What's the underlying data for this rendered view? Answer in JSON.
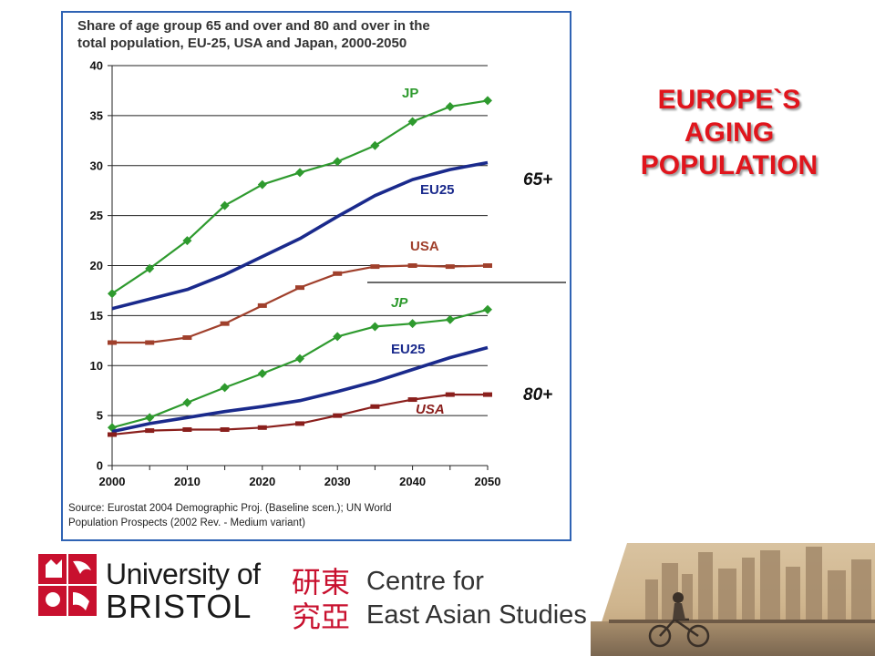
{
  "slide": {
    "title_lines": [
      "EUROPE`S",
      "AGING",
      "POPULATION"
    ]
  },
  "chart": {
    "title_lines": [
      "Share of age group 65 and over and 80 and over in the",
      "total population, EU-25, USA and Japan, 2000-2050"
    ],
    "source_lines": [
      "Source: Eurostat 2004 Demographic Proj. (Baseline scen.); UN World",
      "Population Prospects (2002 Rev. - Medium variant)"
    ],
    "group_labels": [
      "65+",
      "80+"
    ]
  },
  "chart_data": {
    "type": "line",
    "x_ticks": [
      2000,
      2010,
      2020,
      2030,
      2040,
      2050
    ],
    "y_ticks": [
      0,
      5,
      10,
      15,
      20,
      25,
      30,
      35,
      40
    ],
    "xlim": [
      2000,
      2050
    ],
    "ylim": [
      0,
      40
    ],
    "grid": "horizontal",
    "series": [
      {
        "name": "JP",
        "group": "65+",
        "color": "#2e9a2e",
        "marker": "diamond",
        "x": [
          2000,
          2005,
          2010,
          2015,
          2020,
          2025,
          2030,
          2035,
          2040,
          2045,
          2050
        ],
        "y": [
          17.2,
          19.7,
          22.5,
          26.0,
          28.1,
          29.3,
          30.4,
          32.0,
          34.4,
          35.9,
          36.5
        ]
      },
      {
        "name": "EU25",
        "group": "65+",
        "color": "#1a2a8c",
        "marker": "none",
        "x": [
          2000,
          2010,
          2015,
          2020,
          2025,
          2030,
          2035,
          2040,
          2045,
          2050
        ],
        "y": [
          15.7,
          17.6,
          19.1,
          20.9,
          22.7,
          24.9,
          27.0,
          28.6,
          29.6,
          30.3
        ]
      },
      {
        "name": "USA",
        "group": "65+",
        "color": "#a0402c",
        "marker": "square",
        "x": [
          2000,
          2005,
          2010,
          2015,
          2020,
          2025,
          2030,
          2035,
          2040,
          2045,
          2050
        ],
        "y": [
          12.3,
          12.3,
          12.8,
          14.2,
          16.0,
          17.8,
          19.2,
          19.9,
          20.0,
          19.9,
          20.0
        ]
      },
      {
        "name": "JP",
        "group": "80+",
        "color": "#2e9a2e",
        "marker": "diamond",
        "x": [
          2000,
          2005,
          2010,
          2015,
          2020,
          2025,
          2030,
          2035,
          2040,
          2045,
          2050
        ],
        "y": [
          3.8,
          4.8,
          6.3,
          7.8,
          9.2,
          10.7,
          12.9,
          13.9,
          14.2,
          14.6,
          15.6
        ]
      },
      {
        "name": "EU25",
        "group": "80+",
        "color": "#1a2a8c",
        "marker": "none",
        "x": [
          2000,
          2005,
          2010,
          2015,
          2020,
          2025,
          2030,
          2035,
          2040,
          2045,
          2050
        ],
        "y": [
          3.4,
          4.2,
          4.8,
          5.4,
          5.9,
          6.5,
          7.4,
          8.4,
          9.6,
          10.8,
          11.8
        ]
      },
      {
        "name": "USA",
        "group": "80+",
        "color": "#8a1f1c",
        "marker": "square",
        "x": [
          2000,
          2005,
          2010,
          2015,
          2020,
          2025,
          2030,
          2035,
          2040,
          2045,
          2050
        ],
        "y": [
          3.1,
          3.5,
          3.6,
          3.6,
          3.8,
          4.2,
          5.0,
          5.9,
          6.6,
          7.1,
          7.1
        ]
      }
    ]
  },
  "footer": {
    "bristol_line1": "University of",
    "bristol_line2": "BRISTOL",
    "ceas_chinese_top": "研東",
    "ceas_chinese_bottom": "究亞",
    "ceas_line1": "Centre for",
    "ceas_line2": "East Asian Studies"
  }
}
